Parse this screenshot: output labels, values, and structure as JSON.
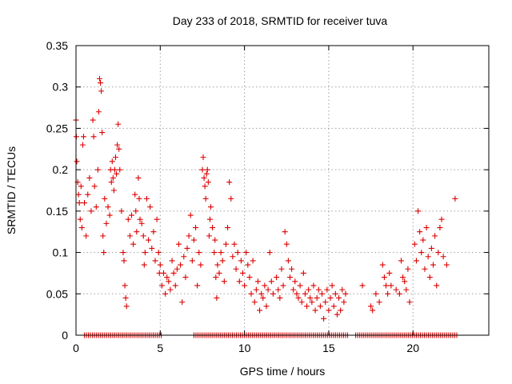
{
  "chart_data": {
    "type": "scatter",
    "title": "Day 233 of 2018, SRMTID for receiver tuva",
    "xlabel": "GPS time / hours",
    "ylabel": "SRMTID / TECUs",
    "xlim": [
      0,
      24.5
    ],
    "ylim": [
      0,
      0.35
    ],
    "x_ticks": [
      0,
      5,
      10,
      15,
      20
    ],
    "x_tick_labels": [
      "0",
      "5",
      "10",
      "15",
      "20"
    ],
    "y_ticks": [
      0,
      0.05,
      0.1,
      0.15,
      0.2,
      0.25,
      0.3,
      0.35
    ],
    "y_tick_labels": [
      "0",
      "0.05",
      "0.1",
      "0.15",
      "0.2",
      "0.25",
      "0.3",
      "0.35"
    ],
    "grid": true,
    "marker": "plus",
    "marker_color": "#dd0000",
    "series": [
      {
        "name": "SRMTID",
        "points": [
          [
            0.0,
            0.26
          ],
          [
            0.02,
            0.24
          ],
          [
            0.05,
            0.21
          ],
          [
            0.1,
            0.185
          ],
          [
            0.15,
            0.17
          ],
          [
            0.2,
            0.16
          ],
          [
            0.25,
            0.14
          ],
          [
            0.3,
            0.18
          ],
          [
            0.35,
            0.13
          ],
          [
            0.4,
            0.23
          ],
          [
            0.45,
            0.24
          ],
          [
            0.5,
            0.16
          ],
          [
            0.6,
            0.12
          ],
          [
            0.7,
            0.17
          ],
          [
            0.8,
            0.19
          ],
          [
            0.9,
            0.15
          ],
          [
            1.0,
            0.26
          ],
          [
            1.05,
            0.24
          ],
          [
            1.1,
            0.18
          ],
          [
            1.2,
            0.155
          ],
          [
            1.3,
            0.2
          ],
          [
            1.35,
            0.27
          ],
          [
            1.4,
            0.31
          ],
          [
            1.45,
            0.305
          ],
          [
            1.5,
            0.295
          ],
          [
            1.55,
            0.245
          ],
          [
            1.6,
            0.12
          ],
          [
            1.65,
            0.1
          ],
          [
            1.7,
            0.165
          ],
          [
            1.8,
            0.135
          ],
          [
            1.9,
            0.155
          ],
          [
            2.0,
            0.145
          ],
          [
            2.05,
            0.2
          ],
          [
            2.1,
            0.185
          ],
          [
            2.15,
            0.21
          ],
          [
            2.2,
            0.19
          ],
          [
            2.25,
            0.175
          ],
          [
            2.3,
            0.2
          ],
          [
            2.35,
            0.215
          ],
          [
            2.4,
            0.195
          ],
          [
            2.45,
            0.23
          ],
          [
            2.5,
            0.255
          ],
          [
            2.55,
            0.225
          ],
          [
            2.6,
            0.2
          ],
          [
            2.7,
            0.15
          ],
          [
            2.8,
            0.1
          ],
          [
            2.85,
            0.09
          ],
          [
            2.9,
            0.06
          ],
          [
            2.95,
            0.045
          ],
          [
            3.0,
            0.035
          ],
          [
            3.1,
            0.14
          ],
          [
            3.2,
            0.12
          ],
          [
            3.3,
            0.145
          ],
          [
            3.4,
            0.11
          ],
          [
            3.5,
            0.17
          ],
          [
            3.55,
            0.15
          ],
          [
            3.6,
            0.125
          ],
          [
            3.7,
            0.19
          ],
          [
            3.75,
            0.165
          ],
          [
            3.8,
            0.14
          ],
          [
            3.9,
            0.135
          ],
          [
            4.0,
            0.12
          ],
          [
            4.05,
            0.085
          ],
          [
            4.1,
            0.1
          ],
          [
            4.2,
            0.165
          ],
          [
            4.3,
            0.115
          ],
          [
            4.4,
            0.155
          ],
          [
            4.5,
            0.105
          ],
          [
            4.6,
            0.125
          ],
          [
            4.7,
            0.09
          ],
          [
            4.8,
            0.14
          ],
          [
            4.9,
            0.1
          ],
          [
            4.95,
            0.075
          ],
          [
            5.0,
            0.085
          ],
          [
            5.1,
            0.06
          ],
          [
            5.2,
            0.075
          ],
          [
            5.3,
            0.05
          ],
          [
            5.4,
            0.07
          ],
          [
            5.5,
            0.065
          ],
          [
            5.6,
            0.055
          ],
          [
            5.7,
            0.09
          ],
          [
            5.8,
            0.075
          ],
          [
            5.9,
            0.06
          ],
          [
            6.0,
            0.08
          ],
          [
            6.1,
            0.11
          ],
          [
            6.2,
            0.085
          ],
          [
            6.3,
            0.04
          ],
          [
            6.4,
            0.095
          ],
          [
            6.5,
            0.07
          ],
          [
            6.6,
            0.105
          ],
          [
            6.7,
            0.12
          ],
          [
            6.8,
            0.145
          ],
          [
            6.9,
            0.09
          ],
          [
            7.0,
            0.115
          ],
          [
            7.1,
            0.13
          ],
          [
            7.2,
            0.06
          ],
          [
            7.3,
            0.1
          ],
          [
            7.4,
            0.085
          ],
          [
            7.5,
            0.2
          ],
          [
            7.55,
            0.215
          ],
          [
            7.6,
            0.19
          ],
          [
            7.65,
            0.18
          ],
          [
            7.7,
            0.165
          ],
          [
            7.75,
            0.195
          ],
          [
            7.8,
            0.2
          ],
          [
            7.85,
            0.185
          ],
          [
            7.9,
            0.12
          ],
          [
            7.95,
            0.14
          ],
          [
            8.0,
            0.155
          ],
          [
            8.1,
            0.13
          ],
          [
            8.2,
            0.1
          ],
          [
            8.25,
            0.115
          ],
          [
            8.3,
            0.07
          ],
          [
            8.35,
            0.045
          ],
          [
            8.4,
            0.085
          ],
          [
            8.5,
            0.075
          ],
          [
            8.6,
            0.1
          ],
          [
            8.7,
            0.09
          ],
          [
            8.8,
            0.065
          ],
          [
            8.9,
            0.11
          ],
          [
            9.0,
            0.13
          ],
          [
            9.1,
            0.185
          ],
          [
            9.2,
            0.165
          ],
          [
            9.3,
            0.095
          ],
          [
            9.4,
            0.11
          ],
          [
            9.5,
            0.08
          ],
          [
            9.6,
            0.1
          ],
          [
            9.7,
            0.065
          ],
          [
            9.8,
            0.09
          ],
          [
            9.9,
            0.075
          ],
          [
            10.0,
            0.06
          ],
          [
            10.1,
            0.1
          ],
          [
            10.2,
            0.085
          ],
          [
            10.3,
            0.07
          ],
          [
            10.4,
            0.05
          ],
          [
            10.5,
            0.09
          ],
          [
            10.6,
            0.04
          ],
          [
            10.7,
            0.055
          ],
          [
            10.8,
            0.065
          ],
          [
            10.9,
            0.03
          ],
          [
            11.0,
            0.05
          ],
          [
            11.1,
            0.045
          ],
          [
            11.2,
            0.06
          ],
          [
            11.3,
            0.035
          ],
          [
            11.4,
            0.055
          ],
          [
            11.5,
            0.1
          ],
          [
            11.6,
            0.065
          ],
          [
            11.7,
            0.05
          ],
          [
            11.9,
            0.07
          ],
          [
            12.0,
            0.055
          ],
          [
            12.1,
            0.045
          ],
          [
            12.2,
            0.08
          ],
          [
            12.3,
            0.06
          ],
          [
            12.4,
            0.125
          ],
          [
            12.5,
            0.11
          ],
          [
            12.6,
            0.09
          ],
          [
            12.7,
            0.07
          ],
          [
            12.8,
            0.08
          ],
          [
            12.9,
            0.055
          ],
          [
            13.0,
            0.065
          ],
          [
            13.1,
            0.05
          ],
          [
            13.2,
            0.045
          ],
          [
            13.3,
            0.06
          ],
          [
            13.4,
            0.04
          ],
          [
            13.5,
            0.075
          ],
          [
            13.6,
            0.05
          ],
          [
            13.7,
            0.035
          ],
          [
            13.8,
            0.055
          ],
          [
            13.9,
            0.045
          ],
          [
            14.0,
            0.04
          ],
          [
            14.1,
            0.06
          ],
          [
            14.2,
            0.03
          ],
          [
            14.3,
            0.045
          ],
          [
            14.4,
            0.055
          ],
          [
            14.5,
            0.035
          ],
          [
            14.6,
            0.05
          ],
          [
            14.7,
            0.02
          ],
          [
            14.8,
            0.04
          ],
          [
            14.9,
            0.055
          ],
          [
            15.0,
            0.03
          ],
          [
            15.1,
            0.045
          ],
          [
            15.2,
            0.06
          ],
          [
            15.3,
            0.035
          ],
          [
            15.4,
            0.05
          ],
          [
            15.5,
            0.025
          ],
          [
            15.6,
            0.045
          ],
          [
            15.7,
            0.03
          ],
          [
            15.8,
            0.055
          ],
          [
            15.9,
            0.04
          ],
          [
            16.0,
            0.05
          ],
          [
            17.0,
            0.06
          ],
          [
            17.5,
            0.035
          ],
          [
            17.6,
            0.03
          ],
          [
            17.8,
            0.05
          ],
          [
            18.0,
            0.04
          ],
          [
            18.2,
            0.085
          ],
          [
            18.3,
            0.07
          ],
          [
            18.4,
            0.06
          ],
          [
            18.5,
            0.05
          ],
          [
            18.6,
            0.075
          ],
          [
            18.7,
            0.06
          ],
          [
            19.0,
            0.055
          ],
          [
            19.2,
            0.05
          ],
          [
            19.3,
            0.09
          ],
          [
            19.4,
            0.07
          ],
          [
            19.5,
            0.065
          ],
          [
            19.6,
            0.055
          ],
          [
            19.7,
            0.08
          ],
          [
            19.8,
            0.04
          ],
          [
            20.1,
            0.11
          ],
          [
            20.2,
            0.09
          ],
          [
            20.3,
            0.15
          ],
          [
            20.4,
            0.125
          ],
          [
            20.5,
            0.1
          ],
          [
            20.6,
            0.115
          ],
          [
            20.7,
            0.08
          ],
          [
            20.8,
            0.13
          ],
          [
            20.9,
            0.095
          ],
          [
            21.0,
            0.07
          ],
          [
            21.1,
            0.105
          ],
          [
            21.2,
            0.085
          ],
          [
            21.3,
            0.12
          ],
          [
            21.4,
            0.06
          ],
          [
            21.5,
            0.1
          ],
          [
            21.6,
            0.13
          ],
          [
            21.7,
            0.14
          ],
          [
            21.8,
            0.095
          ],
          [
            22.0,
            0.085
          ],
          [
            22.5,
            0.165
          ]
        ]
      }
    ],
    "zero_baseline": {
      "description_values": "points at value 0",
      "ranges": [
        [
          0.5,
          5.1
        ],
        [
          7.0,
          16.2
        ],
        [
          16.6,
          22.6
        ]
      ]
    }
  }
}
